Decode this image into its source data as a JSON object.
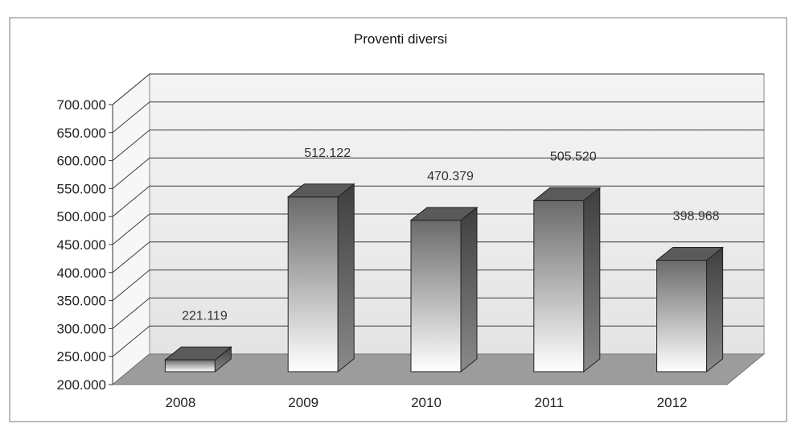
{
  "chart_data": {
    "type": "bar",
    "title": "Proventi diversi",
    "categories": [
      "2008",
      "2009",
      "2010",
      "2011",
      "2012"
    ],
    "values": [
      221119,
      512122,
      470379,
      505520,
      398968
    ],
    "value_labels": [
      "221.119",
      "512.122",
      "470.379",
      "505.520",
      "398.968"
    ],
    "y_ticks": [
      200000,
      250000,
      300000,
      350000,
      400000,
      450000,
      500000,
      550000,
      600000,
      650000,
      700000
    ],
    "y_tick_labels": [
      "200.000",
      "250.000",
      "300.000",
      "350.000",
      "400.000",
      "450.000",
      "500.000",
      "550.000",
      "600.000",
      "650.000",
      "700.000"
    ],
    "ylim": [
      200000,
      700000
    ],
    "xlabel": "",
    "ylabel": "",
    "grid": true,
    "legend": "none",
    "style": "3d-column",
    "colors": {
      "bar_light": "#ffffff",
      "bar_dark": "#6a6a6a",
      "bar_side": "#4a4a4a",
      "floor": "#9c9c9c",
      "wall": "#efefef",
      "grid": "#3a3a3a"
    }
  }
}
